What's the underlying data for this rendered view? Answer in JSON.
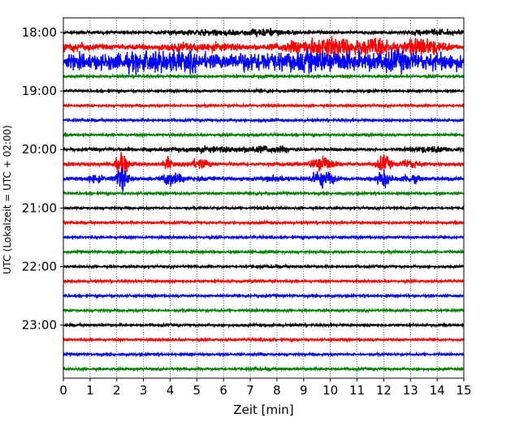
{
  "chart_data": {
    "type": "line",
    "xlabel": "Zeit  [min]",
    "ylabel": "UTC (Lokalzeit = UTC + 02:00)",
    "xlim": [
      0,
      15
    ],
    "x_ticks": [
      0,
      1,
      2,
      3,
      4,
      5,
      6,
      7,
      8,
      9,
      10,
      11,
      12,
      13,
      14,
      15
    ],
    "x_tick_labels": [
      "0",
      "1",
      "2",
      "3",
      "4",
      "5",
      "6",
      "7",
      "8",
      "9",
      "10",
      "11",
      "12",
      "13",
      "14",
      "15"
    ],
    "y_tick_labels": [
      "18:00",
      "19:00",
      "20:00",
      "21:00",
      "22:00",
      "23:00"
    ],
    "vertical_grid": true,
    "grid_style": "dotted",
    "trace_interval_minutes": 15,
    "colors": [
      "#000000",
      "#ff0000",
      "#0000ff",
      "#008000"
    ],
    "traces": [
      {
        "start": "18:00",
        "color": "#000000",
        "noise": "moderate"
      },
      {
        "start": "18:15",
        "color": "#ff0000",
        "noise": "strong"
      },
      {
        "start": "18:30",
        "color": "#0000ff",
        "noise": "very strong"
      },
      {
        "start": "18:45",
        "color": "#008000",
        "noise": "quiet"
      },
      {
        "start": "19:00",
        "color": "#000000",
        "noise": "quiet"
      },
      {
        "start": "19:15",
        "color": "#ff0000",
        "noise": "quiet"
      },
      {
        "start": "19:30",
        "color": "#0000ff",
        "noise": "quiet"
      },
      {
        "start": "19:45",
        "color": "#008000",
        "noise": "quiet"
      },
      {
        "start": "20:00",
        "color": "#000000",
        "noise": "moderate"
      },
      {
        "start": "20:15",
        "color": "#ff0000",
        "noise": "bursts"
      },
      {
        "start": "20:30",
        "color": "#0000ff",
        "noise": "bursts"
      },
      {
        "start": "20:45",
        "color": "#008000",
        "noise": "quiet"
      },
      {
        "start": "21:00",
        "color": "#000000",
        "noise": "quiet"
      },
      {
        "start": "21:15",
        "color": "#ff0000",
        "noise": "quiet"
      },
      {
        "start": "21:30",
        "color": "#0000ff",
        "noise": "quiet"
      },
      {
        "start": "21:45",
        "color": "#008000",
        "noise": "quiet"
      },
      {
        "start": "22:00",
        "color": "#000000",
        "noise": "quiet"
      },
      {
        "start": "22:15",
        "color": "#ff0000",
        "noise": "quiet"
      },
      {
        "start": "22:30",
        "color": "#0000ff",
        "noise": "quiet"
      },
      {
        "start": "22:45",
        "color": "#008000",
        "noise": "quiet"
      },
      {
        "start": "23:00",
        "color": "#000000",
        "noise": "quiet"
      },
      {
        "start": "23:15",
        "color": "#ff0000",
        "noise": "quiet"
      },
      {
        "start": "23:30",
        "color": "#0000ff",
        "noise": "quiet"
      },
      {
        "start": "23:45",
        "color": "#008000",
        "noise": "quiet"
      }
    ]
  }
}
